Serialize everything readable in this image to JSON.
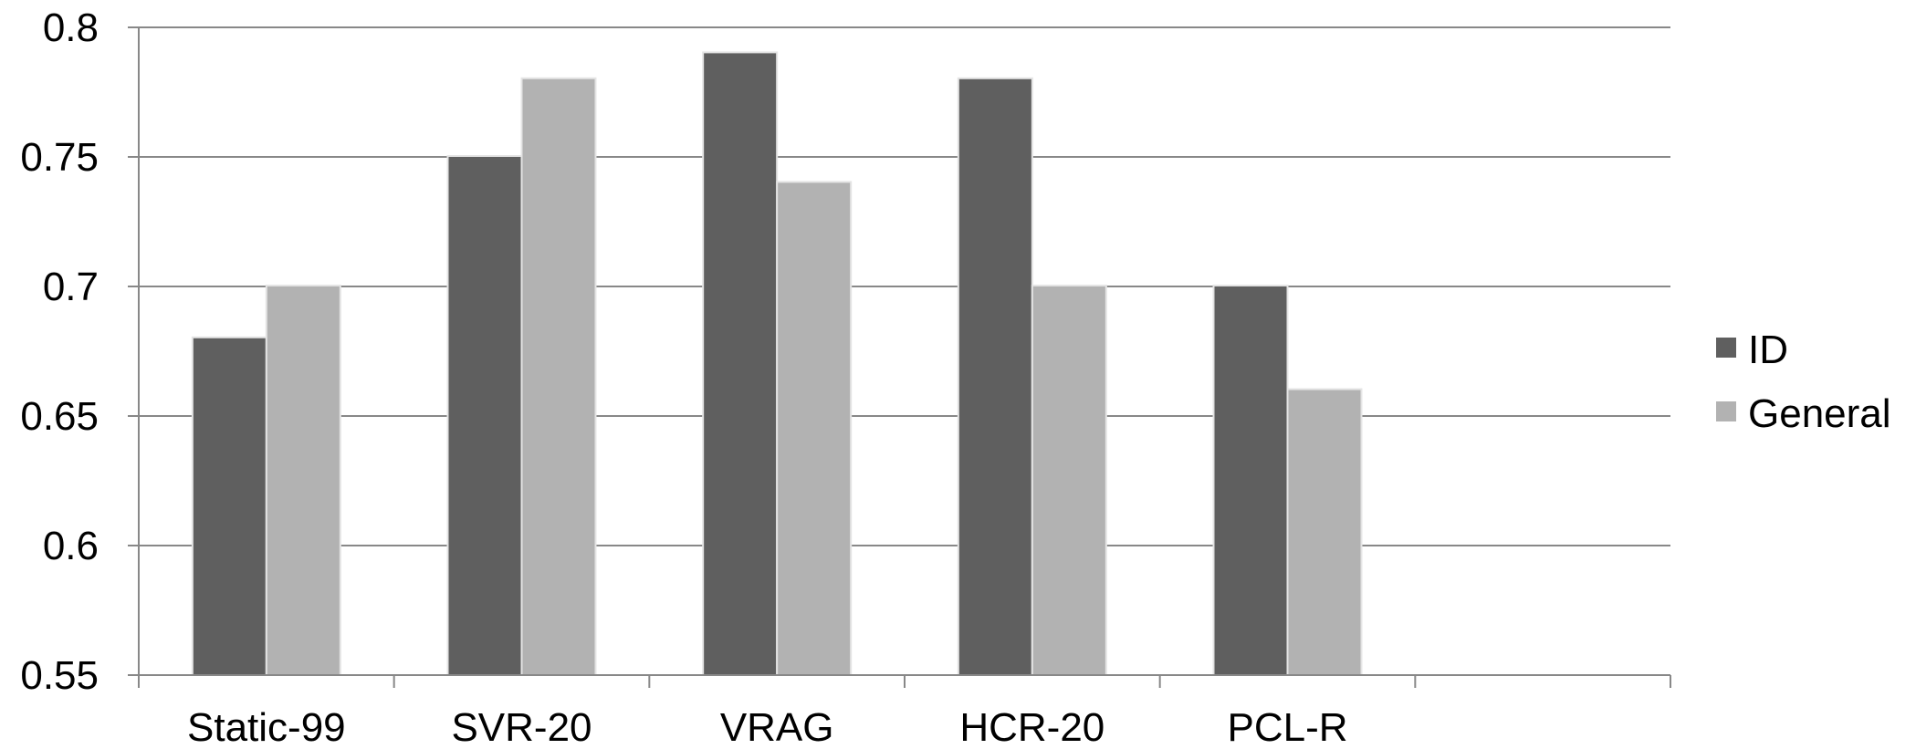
{
  "chart_data": {
    "type": "bar",
    "title": "",
    "xlabel": "",
    "ylabel": "",
    "categories": [
      "Static-99",
      "SVR-20",
      "VRAG",
      "HCR-20",
      "PCL-R",
      ""
    ],
    "series": [
      {
        "name": "ID",
        "values": [
          0.68,
          0.75,
          0.79,
          0.78,
          0.7,
          null
        ],
        "color": "#5f5f5f"
      },
      {
        "name": "General",
        "values": [
          0.7,
          0.78,
          0.74,
          0.7,
          0.66,
          null
        ],
        "color": "#b2b2b2"
      }
    ],
    "ylim": [
      0.55,
      0.8
    ],
    "yticks": [
      "0.55",
      "0.6",
      "0.65",
      "0.7",
      "0.75",
      "0.8"
    ],
    "grid": true,
    "legend_position": "right"
  }
}
